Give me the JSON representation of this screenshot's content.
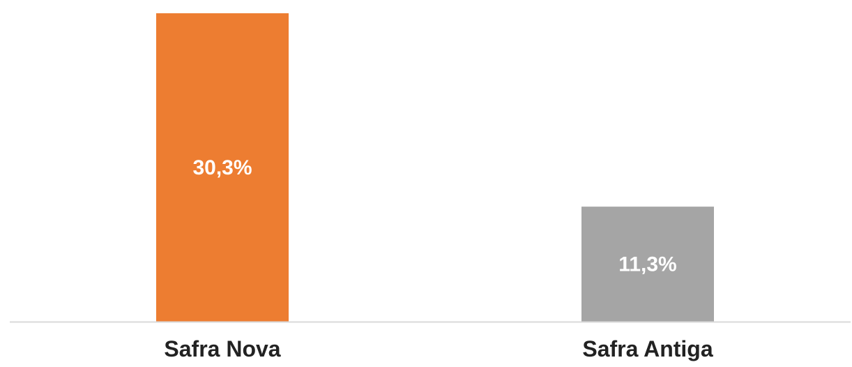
{
  "chart_data": {
    "type": "bar",
    "categories": [
      "Safra Nova",
      "Safra Antiga"
    ],
    "values": [
      30.3,
      11.3
    ],
    "data_labels": [
      "30,3%",
      "11,3%"
    ],
    "colors": [
      "#ED7D31",
      "#A5A5A5"
    ],
    "axis_color": "#D9D9D9",
    "ylim": [
      0,
      30.3
    ],
    "grid": false,
    "legend": "none"
  }
}
